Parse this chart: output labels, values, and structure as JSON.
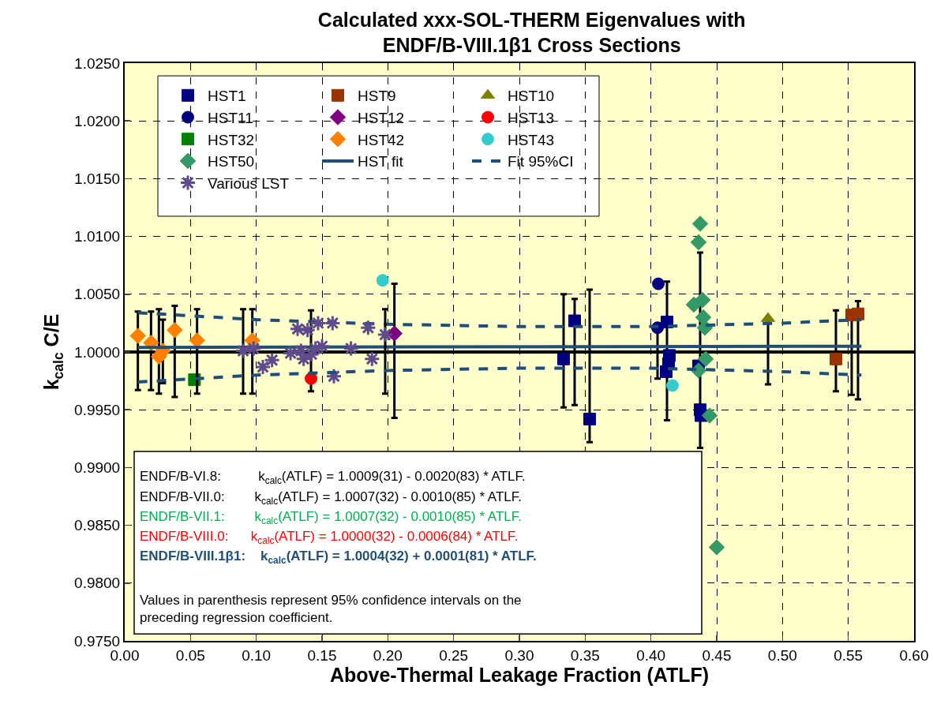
{
  "chart_data": {
    "type": "scatter",
    "title": "Calculated xxx-SOL-THERM Eigenvalues with\nENDF/B-VIII.1β1 Cross Sections",
    "xlabel": "Above-Thermal Leakage Fraction (ATLF)",
    "ylabel": "k$_{calc}$ C/E",
    "xlim": [
      0,
      0.6
    ],
    "xticks": [
      {
        "value": 0,
        "label": "0.00"
      },
      {
        "value": 0.05,
        "label": "0.05"
      },
      {
        "value": 0.1,
        "label": "0.10"
      },
      {
        "value": 0.15,
        "label": "0.15"
      },
      {
        "value": 0.2,
        "label": "0.20"
      },
      {
        "value": 0.25,
        "label": "0.25"
      },
      {
        "value": 0.3,
        "label": "0.30"
      },
      {
        "value": 0.35,
        "label": "0.35"
      },
      {
        "value": 0.4,
        "label": "0.40"
      },
      {
        "value": 0.45,
        "label": "0.45"
      },
      {
        "value": 0.5,
        "label": "0.50"
      },
      {
        "value": 0.55,
        "label": "0.55"
      },
      {
        "value": 0.6,
        "label": "0.60"
      }
    ],
    "ylim": [
      0.975,
      1.025
    ],
    "yticks": [
      {
        "value": 0.975,
        "label": "0.9750"
      },
      {
        "value": 0.98,
        "label": "0.9800"
      },
      {
        "value": 0.985,
        "label": "0.9850"
      },
      {
        "value": 0.99,
        "label": "0.9900"
      },
      {
        "value": 0.995,
        "label": "0.9950"
      },
      {
        "value": 1,
        "label": "1.0000"
      },
      {
        "value": 1.005,
        "label": "1.0050"
      },
      {
        "value": 1.01,
        "label": "1.0100"
      },
      {
        "value": 1.015,
        "label": "1.0150"
      },
      {
        "value": 1.02,
        "label": "1.0200"
      },
      {
        "value": 1.025,
        "label": "1.0250"
      }
    ],
    "grid": true,
    "legend": "top left",
    "ref_lines": [
      {
        "axis": "y",
        "value": 1,
        "color": "#000000"
      }
    ],
    "annotations": [
      "ENDF/B-VI.8:     k$_{calc}$(ATLF) = 1.0009(31) - 0.0020(83) * ATLF.",
      "ENDF/B-VII.0:    k$_{calc}$(ATLF) = 1.0007(32) - 0.0010(85) * ATLF.",
      "ENDF/B-VII.1:    k$_{calc}$(ATLF) = 1.0007(32) - 0.0010(85) * ATLF.",
      "ENDF/B-VIII.0:   k$_{calc}$(ATLF) = 1.0000(32) - 0.0006(84) * ATLF.",
      "ENDF/B-VIII.1β1:  k$_{calc}$(ATLF) = 1.0004(32) + 0.0001(81) * ATLF.",
      "Values in parenthesis represent 95% confidence intervals on the preceding regression coefficient."
    ],
    "series": [
      {
        "name": "HST1",
        "color": "#000080",
        "marker": "square",
        "x": [
          0.3336,
          0.342,
          0.3534,
          0.4122,
          0.414,
          0.4134,
          0.4116,
          0.4362,
          0.4374,
          0.438
        ],
        "values": [
          0.9994,
          1.0027,
          0.9942,
          1.0026,
          0.9997,
          0.999,
          0.9983,
          0.9988,
          0.995,
          0.9945
        ],
        "errors": [
          [
            0.9952,
            1.005
          ],
          [
            0.9954,
            1.0046
          ],
          [
            0.9922,
            1.0054
          ],
          [
            0.9941,
            1.0061
          ],
          null,
          null,
          null,
          null,
          [
            0.9917,
            1.0086
          ],
          null
        ]
      },
      {
        "name": "HST9",
        "color": "#993300",
        "marker": "square",
        "x": [
          0.5406,
          0.5526,
          0.5574
        ],
        "values": [
          0.9994,
          1.0032,
          1.0033
        ],
        "errors": [
          [
            0.9966,
            1.0036
          ],
          [
            0.9963,
            1.0032
          ],
          [
            0.9959,
            1.0044
          ]
        ]
      },
      {
        "name": "HST10",
        "color": "#808000",
        "marker": "triangle",
        "x": [
          0.489
        ],
        "values": [
          1.0029
        ],
        "errors": [
          [
            0.9972,
            1.0029
          ]
        ]
      },
      {
        "name": "HST11",
        "color": "#000080",
        "marker": "circle",
        "x": [
          0.4056,
          0.405
        ],
        "values": [
          1.0059,
          1.0021
        ],
        "errors": [
          null,
          [
            0.9977,
            1.0021
          ]
        ]
      },
      {
        "name": "HST12",
        "color": "#800080",
        "marker": "diamond",
        "x": [
          0.205
        ],
        "values": [
          1.0016
        ],
        "errors": [
          [
            0.9943,
            1.0059
          ]
        ]
      },
      {
        "name": "HST13",
        "color": "#ff0000",
        "marker": "circle",
        "x": [
          0.1416
        ],
        "values": [
          0.9977
        ],
        "errors": [
          [
            0.9966,
            1.0036
          ]
        ]
      },
      {
        "name": "HST32",
        "color": "#008000",
        "marker": "square",
        "x": [
          0.053
        ],
        "values": [
          0.9976
        ]
      },
      {
        "name": "HST42",
        "color": "#ff8000",
        "marker": "diamond",
        "x": [
          0.01,
          0.02,
          0.026,
          0.029,
          0.038,
          0.055,
          0.097
        ],
        "values": [
          1.0014,
          1.0008,
          0.9996,
          1.0001,
          1.0019,
          1.001,
          1.001
        ],
        "errors": [
          [
            0.9967,
            1.0035
          ],
          [
            0.9967,
            1.0035
          ],
          [
            0.9964,
            1.0037
          ],
          [
            0.9973,
            1.0028
          ],
          [
            0.9961,
            1.004
          ],
          [
            0.9964,
            1.0037
          ],
          [
            0.9964,
            1.0037
          ]
        ]
      },
      {
        "name": "HST43",
        "color": "#33cccc",
        "marker": "circle",
        "x": [
          0.196,
          0.4164
        ],
        "values": [
          1.0062,
          0.9971
        ]
      },
      {
        "name": "HST50",
        "color": "#339966",
        "marker": "diamond",
        "x": [
          0.4374,
          0.4362,
          0.4326,
          0.4392,
          0.4398,
          0.441,
          0.4416,
          0.4362,
          0.4446,
          0.45
        ],
        "values": [
          1.0111,
          1.0095,
          1.0041,
          1.0045,
          1.003,
          1.0021,
          0.9994,
          0.9984,
          0.9945,
          0.9831
        ]
      },
      {
        "name": "HST fit",
        "type": "line",
        "color": "#1f4e79",
        "marker": "none",
        "line_style": "solid",
        "x": [
          0.01,
          0.56
        ],
        "values": [
          1.0004,
          1.0005
        ]
      },
      {
        "name": "Fit 95%CI",
        "type": "line",
        "color": "#1f4e79",
        "marker": "none",
        "line_style": "dashed",
        "x": [
          0.01,
          0.1,
          0.2,
          0.3,
          0.4,
          0.5,
          0.56
        ],
        "values": [
          1.0034,
          1.0028,
          1.0024,
          1.0022,
          1.0022,
          1.0025,
          1.0028
        ]
      },
      {
        "name": "Various LST",
        "color": "#5e4b8b",
        "marker": "cross",
        "x": [
          0.1314,
          0.139,
          0.147,
          0.158,
          0.185,
          0.198,
          0.09,
          0.098,
          0.105,
          0.112,
          0.126,
          0.134,
          0.136,
          0.142,
          0.145,
          0.15,
          0.172,
          0.188,
          0.159
        ],
        "values": [
          1.002,
          1.0019,
          1.0025,
          1.0025,
          1.0021,
          1.0015,
          1.0001,
          1.0003,
          0.9987,
          0.9993,
          0.9999,
          1.0001,
          0.9994,
          0.9998,
          1.0003,
          1.0005,
          1.0003,
          0.9994,
          0.9979
        ],
        "errors": [
          null,
          null,
          null,
          null,
          null,
          [
            0.9964,
            1.0037
          ],
          [
            0.9964,
            1.0037
          ],
          null,
          null,
          null,
          null,
          null,
          null,
          null,
          null,
          null,
          null,
          null,
          null
        ]
      },
      {
        "type": "line",
        "color": "#1f4e79",
        "marker": "none",
        "line_style": "dashed",
        "x": [
          0.01,
          0.1,
          0.2,
          0.3,
          0.4,
          0.5,
          0.56
        ],
        "values": [
          0.9974,
          0.998,
          0.9984,
          0.9986,
          0.9986,
          0.9983,
          0.998
        ]
      }
    ]
  }
}
